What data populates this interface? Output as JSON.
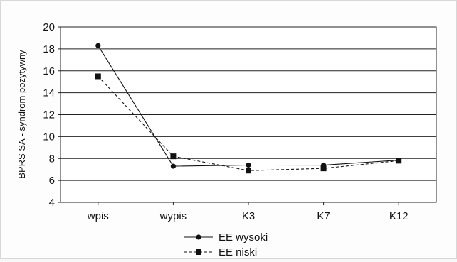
{
  "chart_data": {
    "type": "line",
    "categories": [
      "wpis",
      "wypis",
      "K3",
      "K7",
      "K12"
    ],
    "ylabel": "BPRS SA - syndrom pozytywny",
    "xlabel": "",
    "ylim": [
      4,
      20
    ],
    "yticks": [
      4,
      6,
      8,
      10,
      12,
      14,
      16,
      18,
      20
    ],
    "grid": "horizontal",
    "legend_position": "bottom",
    "series": [
      {
        "name": "EE wysoki",
        "values": [
          18.3,
          7.3,
          7.4,
          7.4,
          7.85
        ],
        "marker": "circle",
        "line_style": "solid",
        "color": "#111111"
      },
      {
        "name": "EE niski",
        "values": [
          15.5,
          8.2,
          6.9,
          7.1,
          7.8
        ],
        "marker": "square",
        "line_style": "dashed",
        "color": "#111111"
      }
    ]
  }
}
